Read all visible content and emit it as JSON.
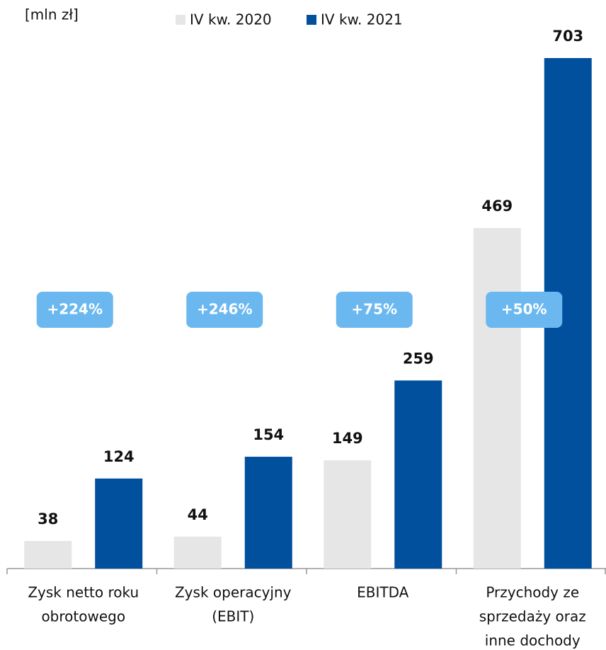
{
  "chart_data": {
    "type": "bar",
    "unit_label": "[mln zł]",
    "categories": [
      [
        "Zysk netto roku",
        "obrotowego"
      ],
      [
        "Zysk operacyjny",
        "(EBIT)"
      ],
      [
        "EBITDA"
      ],
      [
        "Przychody ze",
        "sprzedaży oraz",
        "inne dochody"
      ]
    ],
    "series": [
      {
        "name": "IV kw. 2020",
        "color": "#e6e6e6",
        "values": [
          38,
          44,
          149,
          469
        ]
      },
      {
        "name": "IV kw. 2021",
        "color": "#00509e",
        "values": [
          124,
          154,
          259,
          703
        ]
      }
    ],
    "annotations": [
      "+224%",
      "+246%",
      "+75%",
      "+50%"
    ],
    "annotation_color": "#6bb8f0",
    "ylim": [
      0,
      750
    ]
  }
}
